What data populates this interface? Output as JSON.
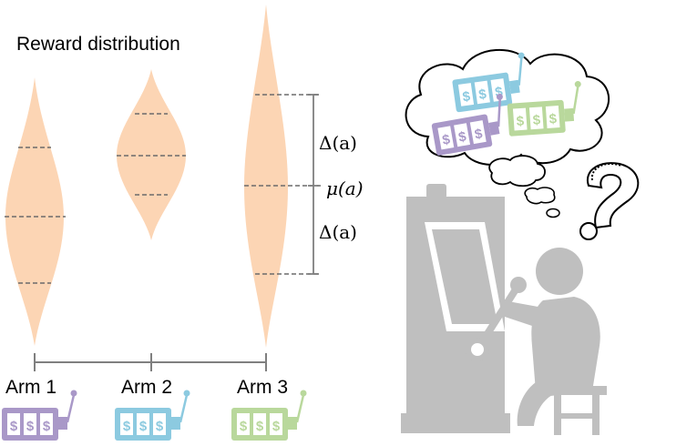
{
  "title": "Reward distribution",
  "arms": [
    {
      "label": "Arm 1",
      "machine_color": "#a998c8",
      "symbol": "$"
    },
    {
      "label": "Arm 2",
      "machine_color": "#8ccae0",
      "symbol": "$"
    },
    {
      "label": "Arm 3",
      "machine_color": "#b9d89c",
      "symbol": "$"
    }
  ],
  "annotations": {
    "delta_upper": "Δ(a)",
    "mean": "μ(a)",
    "delta_lower": "Δ(a)"
  },
  "colors": {
    "distribution_fill": "#fcd5b4",
    "axis": "#7f7f7f",
    "person": "#bfbfbf",
    "slot_machine_big": "#bfbfbf"
  },
  "icons": [
    "slot-machine-icon",
    "thought-bubble-icon",
    "question-mark-icon",
    "person-icon"
  ]
}
